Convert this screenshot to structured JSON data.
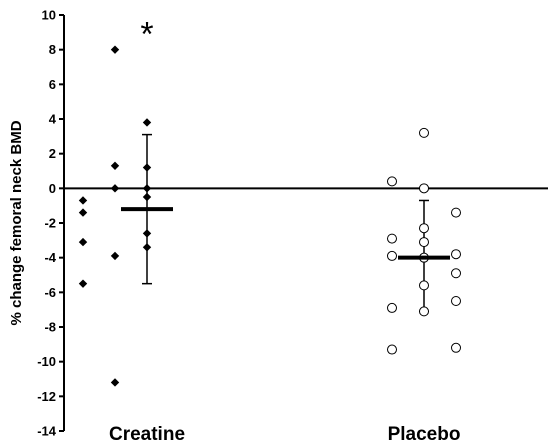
{
  "chart_data": {
    "type": "scatter",
    "ylabel": "% change femoral neck BMD",
    "ylim": [
      -14,
      10
    ],
    "yticks": [
      10,
      8,
      6,
      4,
      2,
      0,
      -2,
      -4,
      -6,
      -8,
      -10,
      -12,
      -14
    ],
    "zero_line": true,
    "categories": [
      "Creatine",
      "Placebo"
    ],
    "series": [
      {
        "category": "Creatine",
        "marker": "filled-diamond",
        "points": [
          {
            "x": -2,
            "y": -0.7
          },
          {
            "x": -2,
            "y": -1.4
          },
          {
            "x": -2,
            "y": -3.1
          },
          {
            "x": -2,
            "y": -5.5
          },
          {
            "x": -1,
            "y": 8.0
          },
          {
            "x": -1,
            "y": 1.3
          },
          {
            "x": -1,
            "y": 0.0
          },
          {
            "x": -1,
            "y": -3.9
          },
          {
            "x": -1,
            "y": -11.2
          },
          {
            "x": 0,
            "y": 3.8
          },
          {
            "x": 0,
            "y": 1.2
          },
          {
            "x": 0,
            "y": 0.0
          },
          {
            "x": 0,
            "y": -0.5
          },
          {
            "x": 0,
            "y": -2.6
          },
          {
            "x": 0,
            "y": -3.4
          }
        ],
        "mean": -1.2,
        "error_upper": 3.1,
        "error_lower": -5.5
      },
      {
        "category": "Placebo",
        "marker": "open-circle",
        "points": [
          {
            "x": -1,
            "y": 0.4
          },
          {
            "x": -1,
            "y": -2.9
          },
          {
            "x": -1,
            "y": -3.9
          },
          {
            "x": -1,
            "y": -6.9
          },
          {
            "x": -1,
            "y": -9.3
          },
          {
            "x": 0,
            "y": 3.2
          },
          {
            "x": 0,
            "y": 0.0
          },
          {
            "x": 0,
            "y": -2.3
          },
          {
            "x": 0,
            "y": -3.1
          },
          {
            "x": 0,
            "y": -4.0
          },
          {
            "x": 0,
            "y": -5.6
          },
          {
            "x": 0,
            "y": -7.1
          },
          {
            "x": 1,
            "y": -1.4
          },
          {
            "x": 1,
            "y": -3.8
          },
          {
            "x": 1,
            "y": -4.9
          },
          {
            "x": 1,
            "y": -6.5
          },
          {
            "x": 1,
            "y": -9.2
          }
        ],
        "mean": -4.0,
        "error_upper": -0.7,
        "error_lower": -7.1
      }
    ],
    "annotations": [
      {
        "text": "*",
        "category": "Creatine",
        "y": 9.0
      }
    ]
  }
}
